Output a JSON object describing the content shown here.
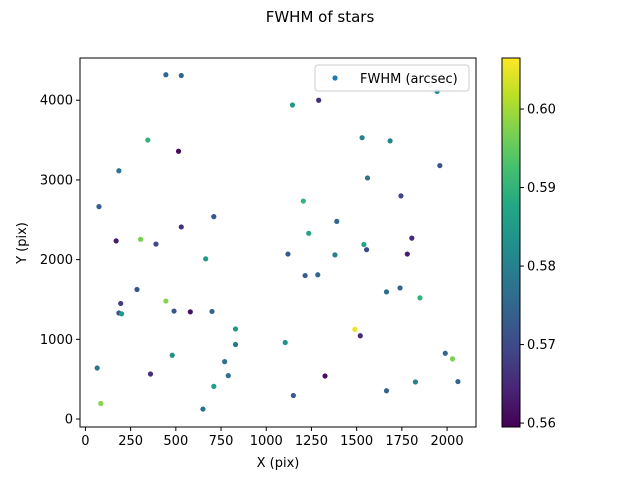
{
  "chart_data": {
    "type": "scatter",
    "title": "FWHM of stars",
    "xlabel": "X (pix)",
    "ylabel": "Y (pix)",
    "xlim": [
      -30,
      2160
    ],
    "ylim": [
      -100,
      4530
    ],
    "xticks": [
      0,
      250,
      500,
      750,
      1000,
      1250,
      1500,
      1750,
      2000
    ],
    "yticks": [
      0,
      1000,
      2000,
      3000,
      4000
    ],
    "legend": {
      "label": "FWHM (arcsec)",
      "position": "top-right"
    },
    "colorbar": {
      "colormap": "viridis",
      "vmin": 0.5595,
      "vmax": 0.6065,
      "ticks": [
        0.56,
        0.57,
        0.58,
        0.59,
        0.6
      ],
      "tick_labels": [
        "0.56",
        "0.57",
        "0.58",
        "0.59",
        "0.60"
      ]
    },
    "grid": false,
    "points": [
      {
        "x": 445,
        "y": 4320,
        "c": 0.575
      },
      {
        "x": 530,
        "y": 4310,
        "c": 0.575
      },
      {
        "x": 1145,
        "y": 3940,
        "c": 0.585
      },
      {
        "x": 1290,
        "y": 4000,
        "c": 0.566
      },
      {
        "x": 1945,
        "y": 4110,
        "c": 0.583
      },
      {
        "x": 345,
        "y": 3500,
        "c": 0.59
      },
      {
        "x": 515,
        "y": 3360,
        "c": 0.561
      },
      {
        "x": 1530,
        "y": 3530,
        "c": 0.58
      },
      {
        "x": 1685,
        "y": 3490,
        "c": 0.581
      },
      {
        "x": 185,
        "y": 3115,
        "c": 0.578
      },
      {
        "x": 1560,
        "y": 3025,
        "c": 0.577
      },
      {
        "x": 1960,
        "y": 3180,
        "c": 0.572
      },
      {
        "x": 75,
        "y": 2665,
        "c": 0.574
      },
      {
        "x": 710,
        "y": 2540,
        "c": 0.572
      },
      {
        "x": 1205,
        "y": 2735,
        "c": 0.59
      },
      {
        "x": 1745,
        "y": 2800,
        "c": 0.569
      },
      {
        "x": 170,
        "y": 2235,
        "c": 0.563
      },
      {
        "x": 305,
        "y": 2255,
        "c": 0.597
      },
      {
        "x": 390,
        "y": 2195,
        "c": 0.57
      },
      {
        "x": 530,
        "y": 2410,
        "c": 0.566
      },
      {
        "x": 1390,
        "y": 2480,
        "c": 0.575
      },
      {
        "x": 1235,
        "y": 2330,
        "c": 0.587
      },
      {
        "x": 1805,
        "y": 2270,
        "c": 0.565
      },
      {
        "x": 665,
        "y": 2010,
        "c": 0.585
      },
      {
        "x": 1120,
        "y": 2070,
        "c": 0.573
      },
      {
        "x": 1380,
        "y": 2060,
        "c": 0.58
      },
      {
        "x": 1540,
        "y": 2190,
        "c": 0.587
      },
      {
        "x": 1555,
        "y": 2125,
        "c": 0.57
      },
      {
        "x": 1780,
        "y": 2070,
        "c": 0.563
      },
      {
        "x": 1215,
        "y": 1800,
        "c": 0.573
      },
      {
        "x": 1285,
        "y": 1810,
        "c": 0.575
      },
      {
        "x": 285,
        "y": 1625,
        "c": 0.572
      },
      {
        "x": 1665,
        "y": 1595,
        "c": 0.576
      },
      {
        "x": 1740,
        "y": 1645,
        "c": 0.574
      },
      {
        "x": 1850,
        "y": 1520,
        "c": 0.59
      },
      {
        "x": 195,
        "y": 1450,
        "c": 0.568
      },
      {
        "x": 445,
        "y": 1480,
        "c": 0.598
      },
      {
        "x": 185,
        "y": 1330,
        "c": 0.572
      },
      {
        "x": 200,
        "y": 1320,
        "c": 0.585
      },
      {
        "x": 490,
        "y": 1355,
        "c": 0.572
      },
      {
        "x": 580,
        "y": 1345,
        "c": 0.562
      },
      {
        "x": 700,
        "y": 1350,
        "c": 0.575
      },
      {
        "x": 830,
        "y": 1130,
        "c": 0.584
      },
      {
        "x": 1490,
        "y": 1125,
        "c": 0.605
      },
      {
        "x": 1520,
        "y": 1045,
        "c": 0.565
      },
      {
        "x": 830,
        "y": 935,
        "c": 0.578
      },
      {
        "x": 1105,
        "y": 960,
        "c": 0.583
      },
      {
        "x": 480,
        "y": 800,
        "c": 0.583
      },
      {
        "x": 1990,
        "y": 825,
        "c": 0.575
      },
      {
        "x": 2030,
        "y": 755,
        "c": 0.597
      },
      {
        "x": 65,
        "y": 640,
        "c": 0.578
      },
      {
        "x": 770,
        "y": 720,
        "c": 0.577
      },
      {
        "x": 360,
        "y": 565,
        "c": 0.566
      },
      {
        "x": 790,
        "y": 545,
        "c": 0.577
      },
      {
        "x": 1325,
        "y": 540,
        "c": 0.562
      },
      {
        "x": 710,
        "y": 410,
        "c": 0.586
      },
      {
        "x": 1825,
        "y": 465,
        "c": 0.58
      },
      {
        "x": 2060,
        "y": 470,
        "c": 0.575
      },
      {
        "x": 1665,
        "y": 355,
        "c": 0.575
      },
      {
        "x": 1150,
        "y": 295,
        "c": 0.573
      },
      {
        "x": 85,
        "y": 195,
        "c": 0.598
      },
      {
        "x": 650,
        "y": 125,
        "c": 0.577
      }
    ]
  }
}
